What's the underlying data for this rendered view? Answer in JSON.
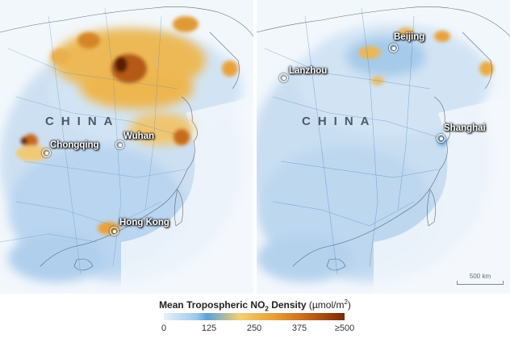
{
  "left_panel": {
    "country_label": "CHINA",
    "cities": [
      {
        "name": "Chongqing"
      },
      {
        "name": "Wuhan"
      },
      {
        "name": "Hong Kong"
      }
    ]
  },
  "right_panel": {
    "country_label": "CHINA",
    "cities": [
      {
        "name": "Beijing"
      },
      {
        "name": "Lanzhou"
      },
      {
        "name": "Shanghai"
      }
    ],
    "scale_bar": "500 km"
  },
  "legend": {
    "title_main": "Mean Tropospheric NO",
    "title_sub": "2",
    "title_rest": " Density ",
    "title_unit": "(µmol/m",
    "title_unit_sup": "2",
    "title_unit_end": ")",
    "ticks": [
      "0",
      "125",
      "250",
      "375",
      "≥500"
    ],
    "colors": [
      "#e8f1fa",
      "#5da2d8",
      "#f3cf73",
      "#e9a23a",
      "#7a2a08"
    ]
  }
}
